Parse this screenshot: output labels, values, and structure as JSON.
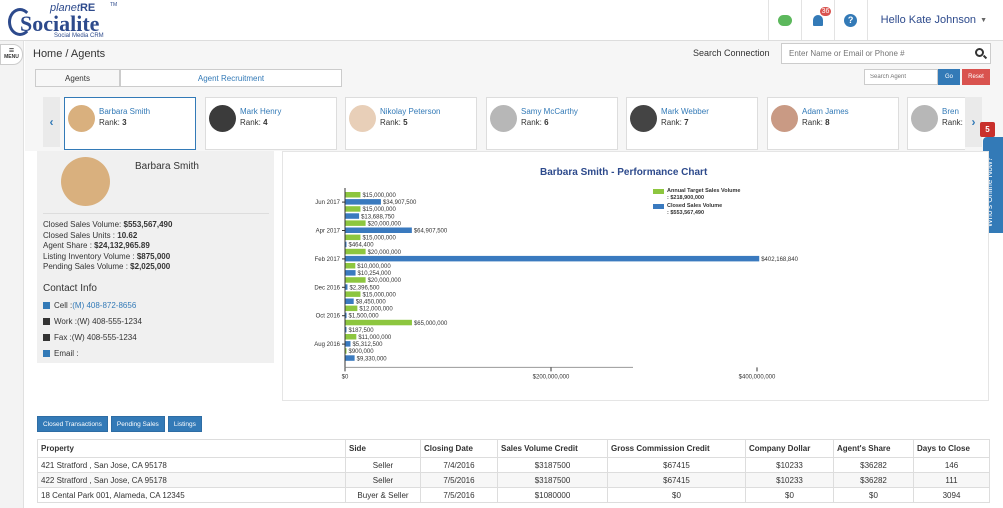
{
  "brand": {
    "planet": "planet",
    "re": "RE",
    "tm": "TM",
    "word": "Socialite",
    "tagline": "Social Media CRM"
  },
  "header": {
    "notification_count": "36",
    "user_greeting": "Hello Kate Johnson"
  },
  "menu": {
    "label": "MENU"
  },
  "breadcrumb": "Home / Agents",
  "search": {
    "label": "Search Connection",
    "placeholder": "Enter Name or Email or Phone #"
  },
  "tabs": {
    "agents": "Agents",
    "recruitment": "Agent Recruitment"
  },
  "agent_search": {
    "placeholder": "Search Agent",
    "go": "Go",
    "reset": "Reset"
  },
  "agents": [
    {
      "name": "Barbara Smith",
      "rank_label": "Rank:",
      "rank": "3"
    },
    {
      "name": "Mark Henry",
      "rank_label": "Rank:",
      "rank": "4"
    },
    {
      "name": "Nikolay Peterson",
      "rank_label": "Rank:",
      "rank": "5"
    },
    {
      "name": "Samy McCarthy",
      "rank_label": "Rank:",
      "rank": "6"
    },
    {
      "name": "Mark Webber",
      "rank_label": "Rank:",
      "rank": "7"
    },
    {
      "name": "Adam James",
      "rank_label": "Rank:",
      "rank": "8"
    },
    {
      "name": "Bren",
      "rank_label": "Rank:",
      "rank": ""
    }
  ],
  "online": {
    "label": "Who's Online Now?",
    "count": "5"
  },
  "profile": {
    "name": "Barbara Smith",
    "stats": [
      {
        "label": "Closed Sales Volume: ",
        "value": "$553,567,490"
      },
      {
        "label": "Closed Sales Units : ",
        "value": "10.62"
      },
      {
        "label": "Agent Share : ",
        "value": "$24,132,965.89"
      },
      {
        "label": "Listing Inventory Volume : ",
        "value": "$875,000"
      },
      {
        "label": "Pending Sales Volume : ",
        "value": "$2,025,000"
      }
    ],
    "contact_heading": "Contact Info",
    "contact": [
      {
        "label": "Cell : ",
        "value": "(M) 408-872-8656"
      },
      {
        "label": "Work : ",
        "value": "(W) 408-555-1234"
      },
      {
        "label": "Fax : ",
        "value": "(W) 408-555-1234"
      },
      {
        "label": "Email : ",
        "value": ""
      }
    ]
  },
  "chart_data": {
    "type": "bar",
    "orientation": "horizontal",
    "title": "Barbara Smith - Performance Chart",
    "xlim": [
      0,
      500000000
    ],
    "x_ticks": [
      "$0",
      "$200,000,000",
      "$400,000,000"
    ],
    "y_ticks": [
      "Jun 2017",
      "Apr 2017",
      "Feb 2017",
      "Dec 2016",
      "Oct 2016",
      "Aug 2016"
    ],
    "legend": [
      {
        "name": "Annual Target Sales Volume",
        "value": ": $218,900,000",
        "color": "#8dc63f"
      },
      {
        "name": "Closed Sales Volume",
        "value": ": $553,567,490",
        "color": "#3a7abf"
      }
    ],
    "legend_position": "top-right",
    "bars": [
      {
        "series": "target",
        "value": 15000000,
        "label": "$15,000,000"
      },
      {
        "series": "closed",
        "value": 34907500,
        "label": "$34,907,500"
      },
      {
        "series": "target",
        "value": 15000000,
        "label": "$15,000,000"
      },
      {
        "series": "closed",
        "value": 13688750,
        "label": "$13,688,750"
      },
      {
        "series": "target",
        "value": 20000000,
        "label": "$20,000,000"
      },
      {
        "series": "closed",
        "value": 64907500,
        "label": "$64,907,500"
      },
      {
        "series": "target",
        "value": 15000000,
        "label": "$15,000,000"
      },
      {
        "series": "closed",
        "value": 464400,
        "label": "$464,400"
      },
      {
        "series": "target",
        "value": 20000000,
        "label": "$20,000,000"
      },
      {
        "series": "closed",
        "value": 402168840,
        "label": "$402,168,840"
      },
      {
        "series": "target",
        "value": 10000000,
        "label": "$10,000,000"
      },
      {
        "series": "closed",
        "value": 10254000,
        "label": "$10,254,000"
      },
      {
        "series": "target",
        "value": 20000000,
        "label": "$20,000,000"
      },
      {
        "series": "closed",
        "value": 2396500,
        "label": "$2,396,500"
      },
      {
        "series": "target",
        "value": 15000000,
        "label": "$15,000,000"
      },
      {
        "series": "closed",
        "value": 8450000,
        "label": "$8,450,000"
      },
      {
        "series": "target",
        "value": 12000000,
        "label": "$12,000,000"
      },
      {
        "series": "closed",
        "value": 1500000,
        "label": "$1,500,000"
      },
      {
        "series": "target",
        "value": 65000000,
        "label": "$65,000,000"
      },
      {
        "series": "closed",
        "value": 187500,
        "label": "$187,500"
      },
      {
        "series": "target",
        "value": 11000000,
        "label": "$11,000,000"
      },
      {
        "series": "closed",
        "value": 5312500,
        "label": "$5,312,500"
      },
      {
        "series": "target",
        "value": 900000,
        "label": "$900,000"
      },
      {
        "series": "closed",
        "value": 9330000,
        "label": "$9,330,000"
      }
    ]
  },
  "lower_tabs": [
    "Closed Transactions",
    "Pending Sales",
    "Listings"
  ],
  "table": {
    "headers": [
      "Property",
      "Side",
      "Closing Date",
      "Sales Volume Credit",
      "Gross Commission Credit",
      "Company Dollar",
      "Agent's Share",
      "Days to Close"
    ],
    "rows": [
      [
        "421 Stratford , San Jose, CA 95178",
        "Seller",
        "7/4/2016",
        "$3187500",
        "$67415",
        "$10233",
        "$36282",
        "146"
      ],
      [
        "422 Stratford , San Jose, CA 95178",
        "Seller",
        "7/5/2016",
        "$3187500",
        "$67415",
        "$10233",
        "$36282",
        "111"
      ],
      [
        "18 Cental Park 001, Alameda, CA 12345",
        "Buyer & Seller",
        "7/5/2016",
        "$1080000",
        "$0",
        "$0",
        "$0",
        "3094"
      ]
    ]
  },
  "colors": {
    "accent": "#337ab7",
    "danger": "#d9534f",
    "target_bar": "#8dc63f",
    "closed_bar": "#3a7abf",
    "title": "#2d4a8c"
  }
}
